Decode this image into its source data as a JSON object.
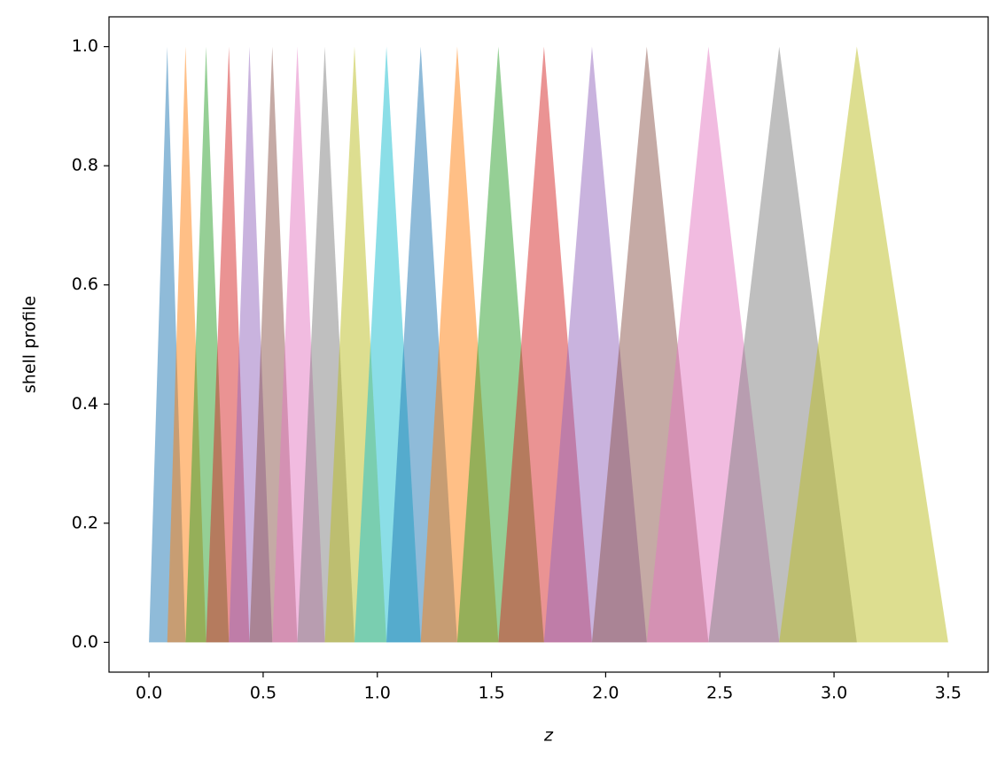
{
  "chart_data": {
    "type": "area",
    "xlabel": "z",
    "ylabel": "shell profile",
    "alpha": 0.5,
    "xlim": [
      -0.175,
      3.675
    ],
    "ylim": [
      -0.05,
      1.05
    ],
    "xticks": [
      {
        "value": 0,
        "label": "0.0"
      },
      0.5,
      {
        "value": 1,
        "label": "1.0"
      },
      1.5,
      {
        "value": 2,
        "label": "2.0"
      },
      2.5,
      {
        "value": 3,
        "label": "3.0"
      },
      3.5
    ],
    "yticks": [
      {
        "value": 0,
        "label": "0.0"
      },
      0.2,
      0.4,
      0.6,
      0.8,
      {
        "value": 1,
        "label": "1.0"
      }
    ],
    "series": [
      {
        "color": "#1f77b4",
        "x": [
          0,
          0.08,
          0.16
        ],
        "values": [
          0,
          1,
          0
        ]
      },
      {
        "color": "#ff7f0e",
        "x": [
          0.08,
          0.16,
          0.25
        ],
        "values": [
          0,
          1,
          0
        ]
      },
      {
        "color": "#2ca02c",
        "x": [
          0.16,
          0.25,
          0.35
        ],
        "values": [
          0,
          1,
          0
        ]
      },
      {
        "color": "#d62728",
        "x": [
          0.25,
          0.35,
          0.44
        ],
        "values": [
          0,
          1,
          0
        ]
      },
      {
        "color": "#9467bd",
        "x": [
          0.35,
          0.44,
          0.54
        ],
        "values": [
          0,
          1,
          0
        ]
      },
      {
        "color": "#8c564b",
        "x": [
          0.44,
          0.54,
          0.65
        ],
        "values": [
          0,
          1,
          0
        ]
      },
      {
        "color": "#e377c2",
        "x": [
          0.54,
          0.65,
          0.77
        ],
        "values": [
          0,
          1,
          0
        ]
      },
      {
        "color": "#7f7f7f",
        "x": [
          0.65,
          0.77,
          0.9
        ],
        "values": [
          0,
          1,
          0
        ]
      },
      {
        "color": "#bcbd22",
        "x": [
          0.77,
          0.9,
          1.04
        ],
        "values": [
          0,
          1,
          0
        ]
      },
      {
        "color": "#17becf",
        "x": [
          0.9,
          1.04,
          1.19
        ],
        "values": [
          0,
          1,
          0
        ]
      },
      {
        "color": "#1f77b4",
        "x": [
          1.04,
          1.19,
          1.35
        ],
        "values": [
          0,
          1,
          0
        ]
      },
      {
        "color": "#ff7f0e",
        "x": [
          1.19,
          1.35,
          1.53
        ],
        "values": [
          0,
          1,
          0
        ]
      },
      {
        "color": "#2ca02c",
        "x": [
          1.35,
          1.53,
          1.73
        ],
        "values": [
          0,
          1,
          0
        ]
      },
      {
        "color": "#d62728",
        "x": [
          1.53,
          1.73,
          1.94
        ],
        "values": [
          0,
          1,
          0
        ]
      },
      {
        "color": "#9467bd",
        "x": [
          1.73,
          1.94,
          2.18
        ],
        "values": [
          0,
          1,
          0
        ]
      },
      {
        "color": "#8c564b",
        "x": [
          1.94,
          2.18,
          2.45
        ],
        "values": [
          0,
          1,
          0
        ]
      },
      {
        "color": "#e377c2",
        "x": [
          2.18,
          2.45,
          2.76
        ],
        "values": [
          0,
          1,
          0
        ]
      },
      {
        "color": "#7f7f7f",
        "x": [
          2.45,
          2.76,
          3.1
        ],
        "values": [
          0,
          1,
          0
        ]
      },
      {
        "color": "#bcbd22",
        "x": [
          2.76,
          3.1,
          3.5
        ],
        "values": [
          0,
          1,
          0
        ]
      }
    ]
  }
}
